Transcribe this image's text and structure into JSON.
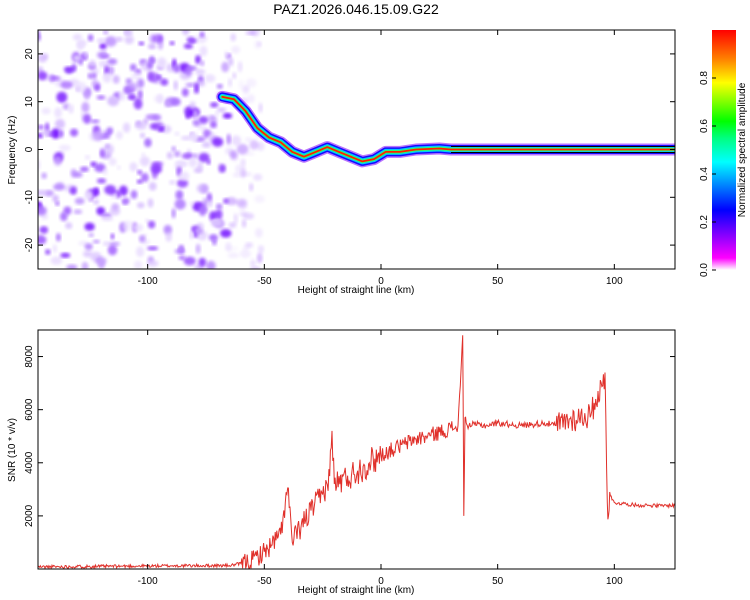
{
  "title": "PAZ1.2026.046.15.09.G22",
  "chart_data": [
    {
      "type": "heatmap",
      "name": "spectrogram",
      "xlabel": "Height of straight line (km)",
      "ylabel": "Frequency (Hz)",
      "xlim": [
        -147,
        126
      ],
      "ylim": [
        -25,
        25
      ],
      "xticks": [
        -100,
        -50,
        0,
        50,
        100
      ],
      "yticks": [
        -20,
        -10,
        0,
        10,
        20
      ],
      "colorbar": {
        "label": "Normalized spectral amplitude",
        "range": [
          0,
          1
        ],
        "ticks": [
          "0.0",
          "0.2",
          "0.4",
          "0.6",
          "0.8"
        ],
        "colors": [
          "#ff0000",
          "#ff8000",
          "#ffff00",
          "#80ff00",
          "#00ff00",
          "#00ff80",
          "#00ffff",
          "#0080ff",
          "#0000ff",
          "#8000ff",
          "#ff00ff",
          "#ffffff"
        ]
      },
      "ridge_km": [
        -68,
        -63,
        -58,
        -53,
        -48,
        -43,
        -38,
        -33,
        -28,
        -23,
        -18,
        -13,
        -8,
        -3,
        2,
        8,
        15,
        25,
        30,
        40,
        60,
        80,
        100,
        126
      ],
      "ridge_freq_hz": [
        11,
        10.5,
        8,
        4.5,
        2.5,
        1.5,
        -0.5,
        -1.5,
        -0.5,
        0.5,
        -0.5,
        -1.5,
        -2.5,
        -2.0,
        -0.5,
        -0.5,
        0.0,
        0.2,
        0.0,
        0.0,
        0.0,
        0.0,
        0.0,
        0.0
      ],
      "noise_region_km": [
        -147,
        -60
      ],
      "colors": {
        "noise": "#8000ff",
        "ridge": "#ff0000"
      }
    },
    {
      "type": "line",
      "name": "snr",
      "xlabel": "Height of straight line (km)",
      "ylabel": "SNR (10 * v/v)",
      "xlim": [
        -147,
        126
      ],
      "ylim": [
        0,
        9000
      ],
      "xticks": [
        -100,
        -50,
        0,
        50,
        100
      ],
      "yticks": [
        2000,
        4000,
        6000,
        8000
      ],
      "series": [
        {
          "name": "SNR",
          "color": "#e0302a",
          "x": [
            -147,
            -120,
            -90,
            -65,
            -60,
            -55,
            -50,
            -47,
            -43,
            -41,
            -40,
            -38,
            -35,
            -30,
            -25,
            -22,
            -21,
            -20,
            -15,
            -10,
            -5,
            0,
            5,
            10,
            15,
            20,
            25,
            30,
            33,
            34,
            35,
            35.5,
            36,
            36.5,
            37,
            40,
            45,
            50,
            55,
            60,
            65,
            70,
            75,
            80,
            85,
            90,
            92,
            95,
            96,
            97,
            97.5,
            98,
            99,
            100,
            105,
            110,
            115,
            120,
            126
          ],
          "y": [
            80,
            100,
            120,
            130,
            200,
            350,
            650,
            900,
            1300,
            2500,
            3050,
            1000,
            1500,
            2200,
            2800,
            3500,
            5200,
            3200,
            3400,
            3700,
            4000,
            4300,
            4500,
            4700,
            4900,
            5000,
            5150,
            5300,
            5400,
            6900,
            8800,
            2000,
            5700,
            5500,
            5400,
            5450,
            5400,
            5500,
            5450,
            5400,
            5450,
            5500,
            5400,
            5600,
            5700,
            5800,
            6400,
            6900,
            7400,
            2500,
            2000,
            2900,
            2600,
            2500,
            2450,
            2400,
            2400,
            2380,
            2400
          ]
        }
      ]
    }
  ]
}
